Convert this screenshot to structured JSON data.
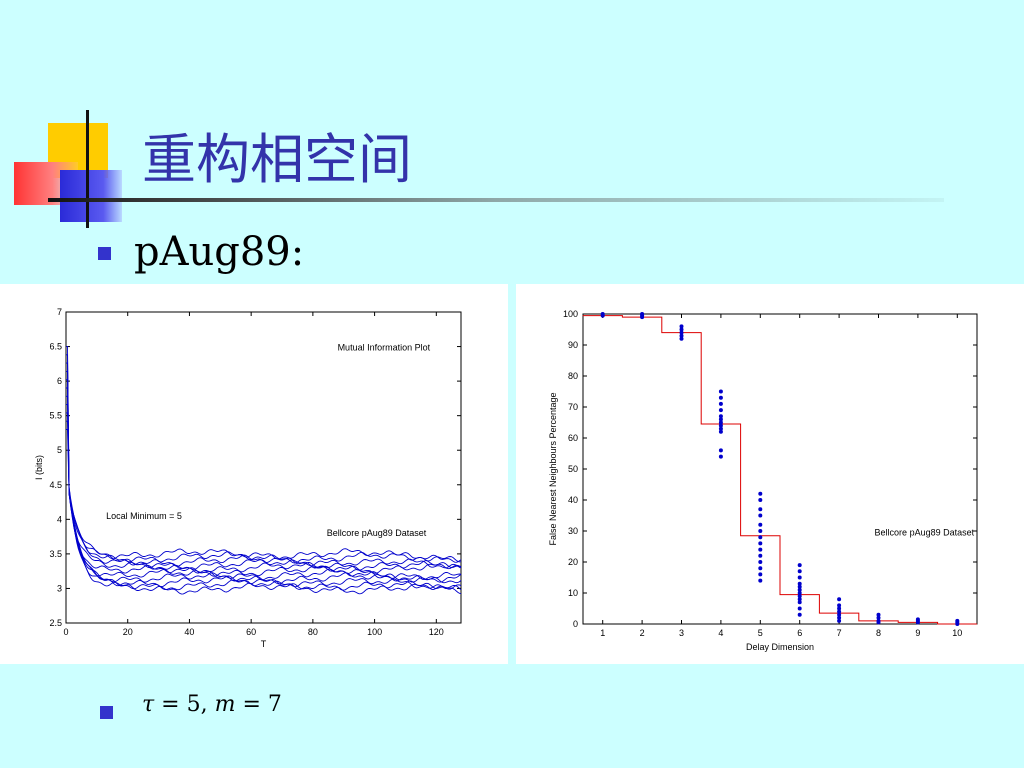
{
  "slide": {
    "title": "重构相空间",
    "subtitle": "pAug89:",
    "formula": {
      "tau": "τ",
      "eq1": " = 5, ",
      "m": "m",
      "eq2": " = 7"
    }
  },
  "colors": {
    "background": "#ccffff",
    "title": "#3333aa",
    "bullet": "#3333cc",
    "series_blue": "#0000cc",
    "step_red": "#dd0000"
  },
  "chart_data": [
    {
      "type": "line",
      "title": "Mutual Information Plot",
      "annotations": [
        "Local Minimum =  5",
        "Bellcore pAug89 Dataset"
      ],
      "xlabel": "T",
      "ylabel": "I (bits)",
      "xlim": [
        0,
        128
      ],
      "ylim": [
        2.5,
        7
      ],
      "xticks": [
        0,
        20,
        40,
        60,
        80,
        100,
        120
      ],
      "yticks": [
        2.5,
        3,
        3.5,
        4,
        4.5,
        5,
        5.5,
        6,
        6.5,
        7
      ],
      "series_levels": [
        3.0,
        3.05,
        3.1,
        3.15,
        3.2,
        3.25,
        3.3,
        3.35,
        3.4,
        3.45,
        3.5
      ]
    },
    {
      "type": "scatter",
      "annotation": "Bellcore pAug89 Dataset",
      "xlabel": "Delay Dimension",
      "ylabel": "False Nearest Neighbours Percentage",
      "xlim": [
        0.5,
        10.5
      ],
      "ylim": [
        0,
        100
      ],
      "xticks": [
        1,
        2,
        3,
        4,
        5,
        6,
        7,
        8,
        9,
        10
      ],
      "yticks": [
        0,
        10,
        20,
        30,
        40,
        50,
        60,
        70,
        80,
        90,
        100
      ],
      "points": [
        {
          "x": 1,
          "y": [
            100,
            99.5
          ]
        },
        {
          "x": 2,
          "y": [
            100,
            99.5,
            99
          ]
        },
        {
          "x": 3,
          "y": [
            96,
            95,
            94,
            93,
            92
          ]
        },
        {
          "x": 4,
          "y": [
            75,
            73,
            71,
            69,
            67,
            66,
            65,
            64,
            63,
            62,
            56,
            54
          ]
        },
        {
          "x": 5,
          "y": [
            42,
            40,
            37,
            35,
            32,
            30,
            28,
            26,
            24,
            22,
            20,
            18,
            16,
            14
          ]
        },
        {
          "x": 6,
          "y": [
            19,
            17,
            15,
            13,
            12,
            11,
            10,
            9,
            8,
            7,
            5,
            3
          ]
        },
        {
          "x": 7,
          "y": [
            8,
            6,
            5,
            4,
            3,
            2,
            1
          ]
        },
        {
          "x": 8,
          "y": [
            3,
            2,
            1,
            0.5
          ]
        },
        {
          "x": 9,
          "y": [
            1.5,
            1,
            0.5
          ]
        },
        {
          "x": 10,
          "y": [
            1,
            0.5,
            0
          ]
        }
      ],
      "step_line": {
        "x": [
          1,
          2,
          3,
          4,
          5,
          6,
          7,
          8,
          9,
          10
        ],
        "y": [
          99.5,
          99,
          94,
          64.5,
          28.5,
          9.5,
          3.5,
          1,
          0.5,
          0
        ]
      }
    }
  ]
}
